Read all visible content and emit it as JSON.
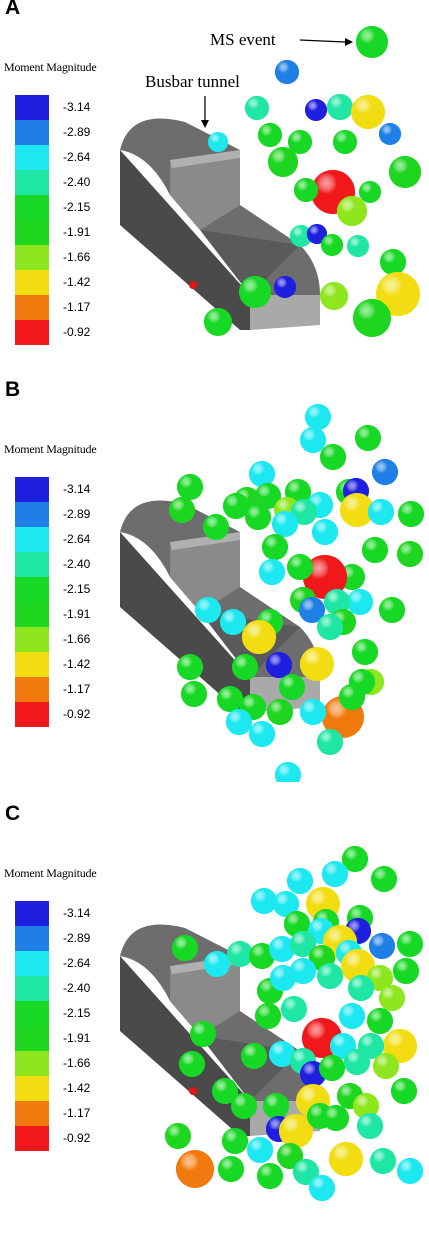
{
  "legend": {
    "title": "Moment Magnitude",
    "entries": [
      {
        "label": "-3.14",
        "color": "#1f1fe0"
      },
      {
        "label": "-2.89",
        "color": "#1f7fe6"
      },
      {
        "label": "-2.64",
        "color": "#1de8f0"
      },
      {
        "label": "-2.40",
        "color": "#1fe6a4"
      },
      {
        "label": "-2.15",
        "color": "#17d824"
      },
      {
        "label": "-1.91",
        "color": "#1ed61f"
      },
      {
        "label": "-1.66",
        "color": "#8ee61e"
      },
      {
        "label": "-1.42",
        "color": "#f1dd12"
      },
      {
        "label": "-1.17",
        "color": "#f17a0e"
      },
      {
        "label": "-0.92",
        "color": "#f0181a"
      }
    ]
  },
  "panels": [
    {
      "letter": "A"
    },
    {
      "letter": "B"
    },
    {
      "letter": "C"
    }
  ],
  "annotations": {
    "ms_event": "MS event",
    "busbar_tunnel": "Busbar tunnel"
  }
}
